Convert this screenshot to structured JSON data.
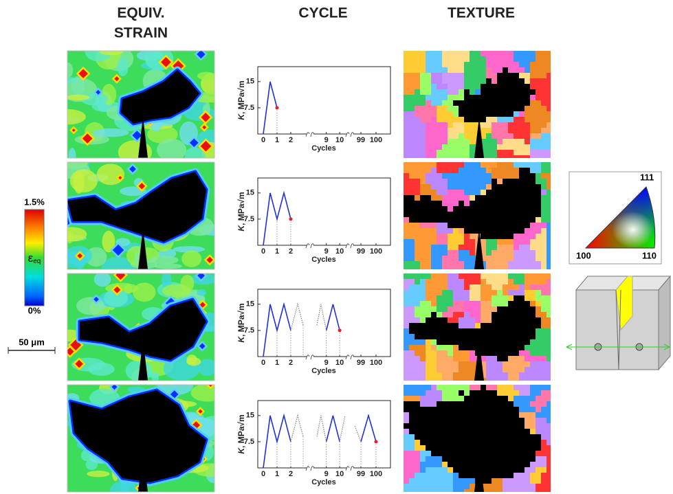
{
  "headers": {
    "strain_line1": "EQUIV.",
    "strain_line2": "STRAIN",
    "cycle": "CYCLE",
    "texture": "TEXTURE"
  },
  "colorbar": {
    "max_label": "1.5%",
    "symbol": "ε",
    "subscript": "eq",
    "min_label": "0%"
  },
  "scale_bar": {
    "label": "50 μm"
  },
  "cycle_plot": {
    "type": "line",
    "ylabel_symbol": "K",
    "ylabel_unit": ", MPa√m",
    "xlabel": "Cycles",
    "ylim": [
      0,
      19.3
    ],
    "yticks": [
      7.5,
      15
    ],
    "xticks": [
      0,
      1,
      2,
      9,
      10,
      99,
      100
    ],
    "xlim_segments": [
      [
        -0.4,
        2.9
      ],
      [
        8.3,
        10.5
      ],
      [
        98.5,
        100.4
      ]
    ],
    "end_marker_color": "#e8202a",
    "panels": [
      {
        "series": [
          {
            "color": "#1f2fe0",
            "style": "solid",
            "x": [
              0,
              0.5,
              1
            ],
            "values": [
              0,
              15,
              7.5
            ]
          }
        ]
      },
      {
        "series": [
          {
            "color": "#1f2fe0",
            "style": "solid",
            "x": [
              0,
              0.5,
              1,
              1.5,
              2
            ],
            "values": [
              0,
              15,
              7.5,
              15,
              7.5
            ]
          }
        ]
      },
      {
        "series": [
          {
            "color": "#1f2fe0",
            "style": "solid",
            "x": [
              0,
              0.5,
              1,
              1.5,
              2,
              null,
              9,
              9.5,
              10
            ],
            "values": [
              0,
              15,
              7.5,
              15,
              7.5,
              null,
              7.5,
              15,
              7.5
            ]
          },
          {
            "color": "#8a8a8a",
            "style": "dotted",
            "x": [
              2,
              2.5,
              2.9,
              null,
              8.3,
              8.6,
              9
            ],
            "values": [
              7.5,
              15,
              9,
              null,
              9,
              15,
              7.5
            ]
          }
        ]
      },
      {
        "series": [
          {
            "color": "#1f2fe0",
            "style": "solid",
            "x": [
              0,
              0.5,
              1,
              1.5,
              2,
              null,
              9,
              9.5,
              10,
              null,
              99,
              99.5,
              100
            ],
            "values": [
              0,
              15,
              7.5,
              15,
              7.5,
              null,
              7.5,
              15,
              7.5,
              null,
              7.5,
              15,
              7.5
            ]
          },
          {
            "color": "#8a8a8a",
            "style": "dotted",
            "x": [
              2,
              2.5,
              2.9,
              null,
              8.3,
              8.6,
              9,
              null,
              10,
              10.4,
              null,
              98.6,
              99
            ],
            "values": [
              7.5,
              15,
              9,
              null,
              9,
              15,
              7.5,
              null,
              7.5,
              15,
              null,
              12,
              7.5
            ]
          }
        ]
      }
    ]
  },
  "ipf": {
    "top": "111",
    "left": "100",
    "right": "110"
  }
}
